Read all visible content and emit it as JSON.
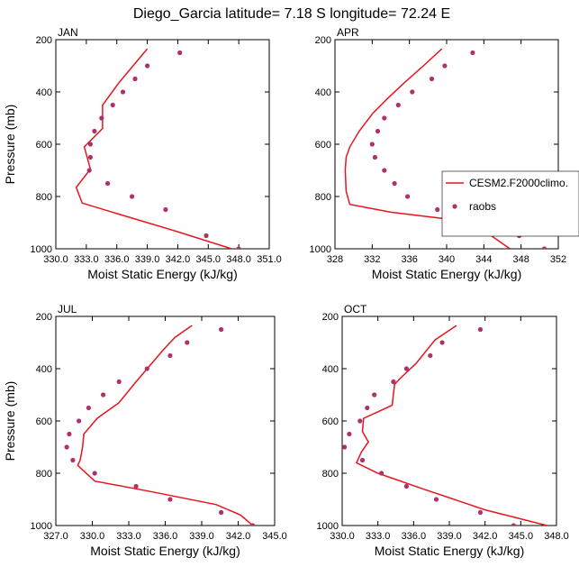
{
  "figure": {
    "title": "Diego_Garcia  latitude= 7.18 S longitude= 72.24 E",
    "colors": {
      "model": "#e8141e",
      "obs": "#b0306a"
    }
  },
  "legend": {
    "items": [
      {
        "label": "CESM2.F2000climo.",
        "kind": "line"
      },
      {
        "label": "raobs",
        "kind": "marker"
      }
    ]
  },
  "chart_data": [
    {
      "type": "line",
      "panel": "JAN",
      "xlabel": "Moist Static Energy (kJ/kg)",
      "ylabel": "Pressure (mb)",
      "xlim": [
        330.0,
        351.0
      ],
      "xticks": [
        330.0,
        333.0,
        336.0,
        339.0,
        342.0,
        345.0,
        348.0,
        351.0
      ],
      "xtick_labels": [
        "330.0",
        "333.0",
        "336.0",
        "339.0",
        "342.0",
        "345.0",
        "348.0",
        "351.0"
      ],
      "ylim": [
        200,
        1000
      ],
      "yticks": [
        200,
        400,
        600,
        800,
        1000
      ],
      "y_reversed": true,
      "series": [
        {
          "name": "CESM2.F2000climo.",
          "kind": "line",
          "x": [
            339.0,
            337.6,
            336.2,
            334.8,
            334.6,
            334.6,
            332.8,
            333.4,
            332.0,
            332.6,
            336.0,
            342.0,
            347.3
          ],
          "y": [
            235,
            300,
            365,
            440,
            450,
            540,
            610,
            695,
            765,
            825,
            865,
            935,
            1000
          ]
        },
        {
          "name": "raobs",
          "kind": "marker",
          "x": [
            342.2,
            339.0,
            337.8,
            336.6,
            335.6,
            334.5,
            333.8,
            333.4,
            333.4,
            333.3,
            335.1,
            337.5,
            340.8,
            344.8,
            348.0
          ],
          "y": [
            250,
            300,
            350,
            400,
            450,
            500,
            550,
            600,
            650,
            700,
            750,
            800,
            850,
            950,
            1000
          ]
        }
      ]
    },
    {
      "type": "line",
      "panel": "APR",
      "xlabel": "Moist Static Energy (kJ/kg)",
      "ylabel": "",
      "xlim": [
        328,
        352
      ],
      "xticks": [
        328,
        332,
        336,
        340,
        344,
        348,
        352
      ],
      "xtick_labels": [
        "328",
        "332",
        "336",
        "340",
        "344",
        "348",
        "352"
      ],
      "ylim": [
        200,
        1000
      ],
      "yticks": [
        200,
        400,
        600,
        800,
        1000
      ],
      "y_reversed": true,
      "series": [
        {
          "name": "CESM2.F2000climo.",
          "kind": "line",
          "x": [
            339.5,
            337.5,
            335.6,
            333.8,
            332.1,
            330.6,
            329.6,
            329.2,
            329.1,
            329.2,
            329.6,
            334.0,
            341.0,
            344.8,
            346.8
          ],
          "y": [
            235,
            300,
            360,
            420,
            480,
            550,
            610,
            650,
            700,
            780,
            830,
            860,
            890,
            950,
            1000
          ]
        },
        {
          "name": "raobs",
          "kind": "marker",
          "x": [
            342.8,
            339.8,
            338.4,
            336.3,
            334.8,
            333.3,
            332.6,
            332.0,
            332.3,
            333.3,
            334.4,
            335.8,
            339.0,
            342.8,
            347.8,
            350.5
          ],
          "y": [
            250,
            300,
            350,
            400,
            450,
            500,
            550,
            600,
            650,
            700,
            750,
            800,
            850,
            900,
            950,
            1000
          ]
        }
      ]
    },
    {
      "type": "line",
      "panel": "JUL",
      "xlabel": "Moist Static Energy (kJ/kg)",
      "ylabel": "Pressure (mb)",
      "xlim": [
        327.0,
        345.0
      ],
      "xticks": [
        327.0,
        330.0,
        333.0,
        336.0,
        339.0,
        342.0,
        345.0
      ],
      "xtick_labels": [
        "327.0",
        "330.0",
        "333.0",
        "336.0",
        "339.0",
        "342.0",
        "345.0"
      ],
      "ylim": [
        200,
        1000
      ],
      "yticks": [
        200,
        400,
        600,
        800,
        1000
      ],
      "y_reversed": true,
      "series": [
        {
          "name": "CESM2.F2000climo.",
          "kind": "line",
          "x": [
            338.2,
            336.8,
            335.8,
            334.7,
            333.6,
            332.2,
            330.4,
            329.3,
            329.2,
            329.0,
            328.8,
            330.2,
            334.8,
            340.2,
            342.2,
            343.2
          ],
          "y": [
            235,
            280,
            330,
            390,
            450,
            530,
            590,
            650,
            700,
            750,
            770,
            830,
            870,
            920,
            960,
            1000
          ]
        },
        {
          "name": "raobs",
          "kind": "marker",
          "x": [
            340.6,
            337.8,
            336.4,
            334.5,
            332.2,
            330.9,
            329.7,
            328.9,
            328.1,
            327.9,
            328.4,
            330.2,
            333.6,
            336.4,
            340.6,
            343.2
          ],
          "y": [
            250,
            300,
            350,
            400,
            450,
            500,
            550,
            600,
            650,
            700,
            750,
            800,
            850,
            900,
            950,
            1000
          ]
        }
      ]
    },
    {
      "type": "line",
      "panel": "OCT",
      "xlabel": "Moist Static Energy (kJ/kg)",
      "ylabel": "",
      "xlim": [
        330.0,
        348.0
      ],
      "xticks": [
        330.0,
        333.0,
        336.0,
        339.0,
        342.0,
        345.0,
        348.0
      ],
      "xtick_labels": [
        "330.0",
        "333.0",
        "336.0",
        "339.0",
        "342.0",
        "345.0",
        "348.0"
      ],
      "ylim": [
        200,
        1000
      ],
      "yticks": [
        200,
        400,
        600,
        800,
        1000
      ],
      "y_reversed": true,
      "series": [
        {
          "name": "CESM2.F2000climo.",
          "kind": "line",
          "x": [
            339.6,
            337.8,
            336.2,
            334.8,
            334.4,
            334.2,
            331.8,
            331.7,
            332.2,
            331.6,
            331.2,
            333.0,
            336.8,
            342.0,
            347.2
          ],
          "y": [
            235,
            290,
            380,
            440,
            460,
            540,
            590,
            640,
            680,
            720,
            760,
            800,
            860,
            940,
            1000
          ]
        },
        {
          "name": "raobs",
          "kind": "marker",
          "x": [
            341.6,
            338.4,
            337.4,
            335.4,
            334.3,
            332.7,
            332.1,
            331.5,
            330.6,
            330.2,
            331.7,
            333.3,
            335.4,
            337.9,
            341.6,
            344.4
          ],
          "y": [
            250,
            300,
            350,
            400,
            450,
            500,
            550,
            600,
            650,
            700,
            750,
            800,
            850,
            900,
            950,
            1000
          ]
        }
      ]
    }
  ]
}
